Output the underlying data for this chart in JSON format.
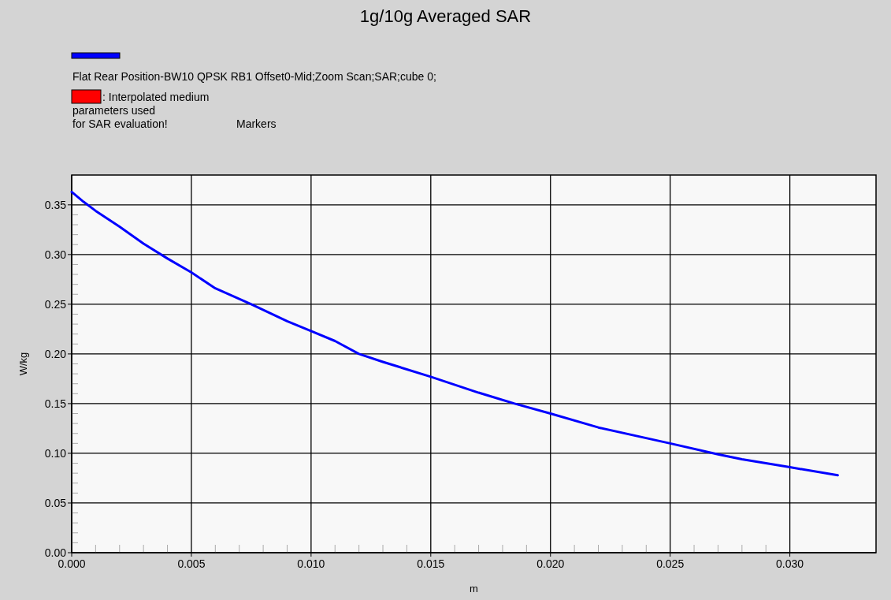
{
  "chart_data": {
    "type": "line",
    "title": "1g/10g Averaged SAR",
    "xlabel": "m",
    "ylabel": "W/kg",
    "x": [
      0,
      0.0005,
      0.001,
      0.0015,
      0.002,
      0.003,
      0.004,
      0.005,
      0.006,
      0.0075,
      0.009,
      0.01,
      0.011,
      0.012,
      0.013,
      0.015,
      0.017,
      0.0185,
      0.02,
      0.022,
      0.025,
      0.027,
      0.028,
      0.03,
      0.032
    ],
    "series": [
      {
        "name": "Flat Rear Position-BW10 QPSK RB1 Offset0-Mid;Zoom Scan;SAR;cube 0;",
        "color": "#0000ff",
        "values": [
          0.363,
          0.353,
          0.344,
          0.336,
          0.328,
          0.311,
          0.296,
          0.282,
          0.266,
          0.25,
          0.233,
          0.223,
          0.213,
          0.2,
          0.192,
          0.177,
          0.161,
          0.15,
          0.14,
          0.126,
          0.11,
          0.099,
          0.094,
          0.086,
          0.078
        ]
      }
    ],
    "xlim": [
      0,
      0.0336
    ],
    "ylim": [
      0,
      0.38
    ],
    "xticks": [
      {
        "value": 0,
        "label": "0.000"
      },
      {
        "value": 0.005,
        "label": "0.005"
      },
      {
        "value": 0.01,
        "label": "0.010"
      },
      {
        "value": 0.015,
        "label": "0.015"
      },
      {
        "value": 0.02,
        "label": "0.020"
      },
      {
        "value": 0.025,
        "label": "0.025"
      },
      {
        "value": 0.03,
        "label": "0.030"
      }
    ],
    "yticks": [
      {
        "value": 0,
        "label": "0.00"
      },
      {
        "value": 0.05,
        "label": "0.05"
      },
      {
        "value": 0.1,
        "label": "0.10"
      },
      {
        "value": 0.15,
        "label": "0.15"
      },
      {
        "value": 0.2,
        "label": "0.20"
      },
      {
        "value": 0.25,
        "label": "0.25"
      },
      {
        "value": 0.3,
        "label": "0.30"
      },
      {
        "value": 0.35,
        "label": "0.35"
      }
    ],
    "grid": true,
    "legend": "top left",
    "line_style": "solid",
    "marker": "none",
    "annotations": [
      ": Interpolated medium\nparameters used\nfor SAR evaluation!",
      "Markers"
    ]
  }
}
